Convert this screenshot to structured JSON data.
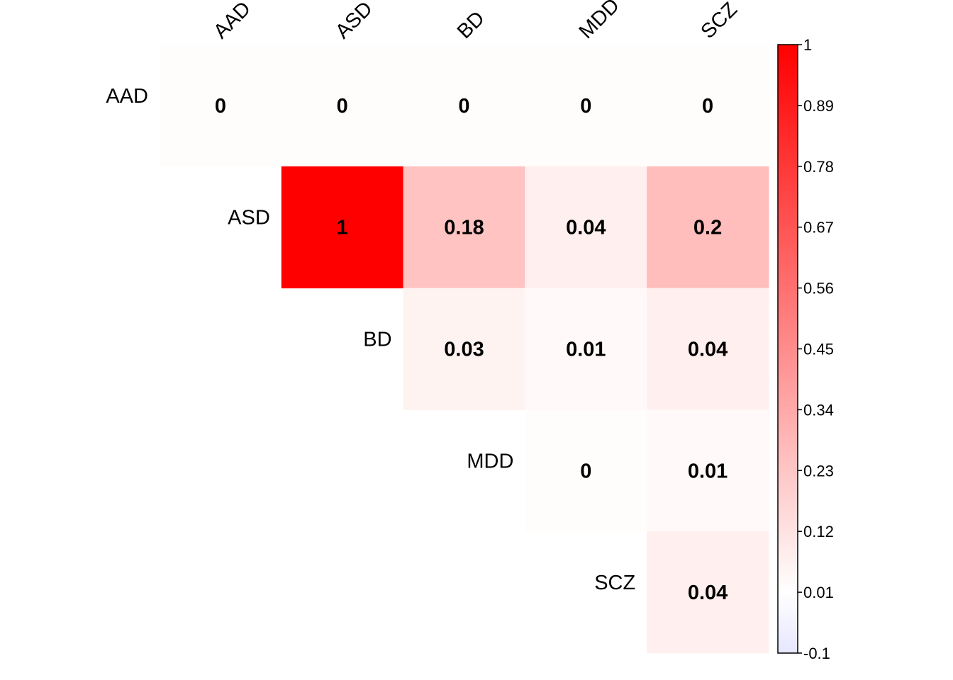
{
  "chart_data": {
    "type": "heatmap",
    "subtype": "upper-triangular correlation plot",
    "row_labels": [
      "AAD",
      "ASD",
      "BD",
      "MDD",
      "SCZ"
    ],
    "col_labels": [
      "AAD",
      "ASD",
      "BD",
      "MDD",
      "SCZ"
    ],
    "values": [
      [
        0,
        0,
        0,
        0,
        0
      ],
      [
        null,
        1,
        0.18,
        0.04,
        0.2
      ],
      [
        null,
        null,
        0.03,
        0.01,
        0.04
      ],
      [
        null,
        null,
        null,
        0,
        0.01
      ],
      [
        null,
        null,
        null,
        null,
        0.04
      ]
    ],
    "value_labels": [
      [
        "0",
        "0",
        "0",
        "0",
        "0"
      ],
      [
        null,
        "1",
        "0.18",
        "0.04",
        "0.2"
      ],
      [
        null,
        null,
        "0.03",
        "0.01",
        "0.04"
      ],
      [
        null,
        null,
        null,
        "0",
        "0.01"
      ],
      [
        null,
        null,
        null,
        null,
        "0.04"
      ]
    ],
    "colorbar": {
      "range": [
        -0.1,
        1
      ],
      "ticks": [
        "1",
        "0.89",
        "0.78",
        "0.67",
        "0.56",
        "0.45",
        "0.34",
        "0.23",
        "0.12",
        "0.01",
        "-0.1"
      ],
      "low_color": "#E6E6FF",
      "mid_color": "#FFFFFF",
      "high_color": "#FF0000"
    }
  }
}
